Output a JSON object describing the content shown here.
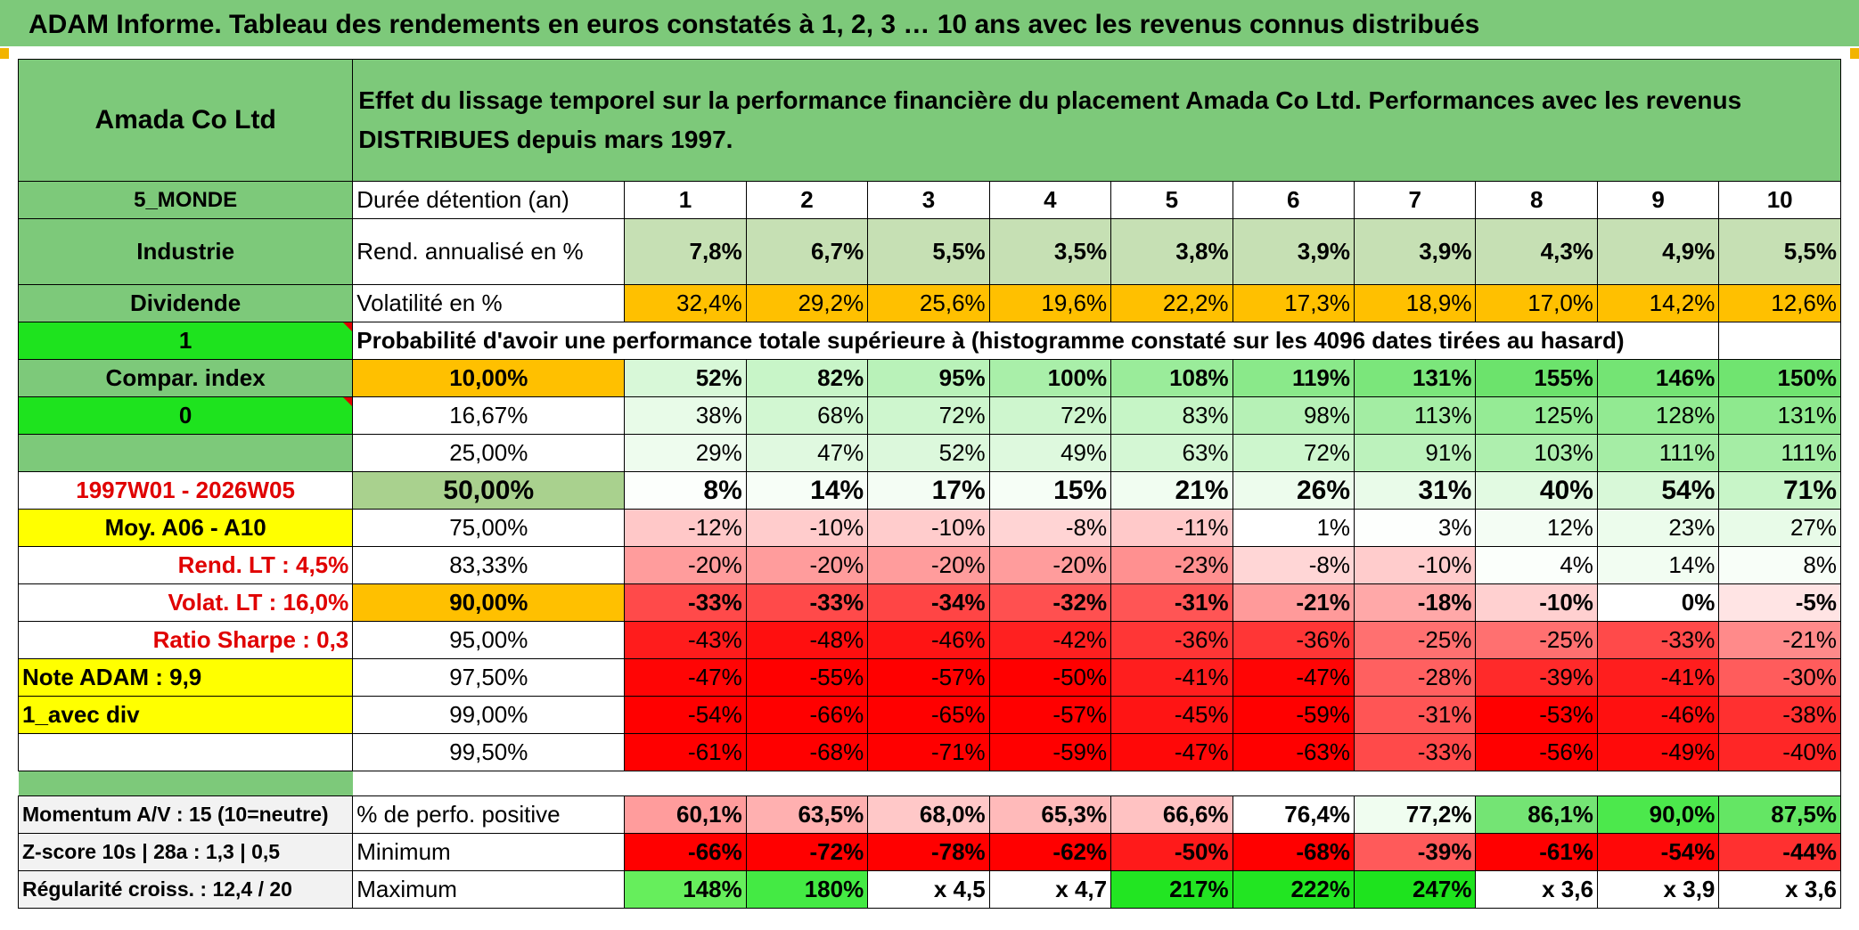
{
  "title": "ADAM Informe. Tableau des rendements en euros constatés à 1, 2, 3 … 10 ans avec les revenus connus distribués",
  "header": {
    "company": "Amada Co Ltd",
    "description": "Effet du lissage temporel sur la performance financière du placement Amada Co Ltd. Performances avec les revenus DISTRIBUES depuis mars 1997."
  },
  "left": {
    "region": "5_MONDE",
    "sector": "Industrie",
    "dividend": "Dividende",
    "flag1": "1",
    "compar": "Compar. index",
    "flag0": "0",
    "period": "1997W01 - 2026W05",
    "moy": "Moy. A06 - A10",
    "rend_lt": "Rend. LT :   4,5%",
    "volat_lt": "Volat. LT :   16,0%",
    "sharpe": "Ratio Sharpe :   0,3",
    "note": "Note ADAM : 9,9",
    "avec_div": "1_avec div",
    "momentum": "Momentum A/V : 15 (10=neutre)",
    "zscore": "Z-score 10s | 28a : 1,3 | 0,5",
    "regularite": "Régularité croiss. : 12,4 / 20"
  },
  "labels": {
    "duree": "Durée détention (an)",
    "rend": "Rend. annualisé en %",
    "volat": "Volatilité en %",
    "proba": "Probabilité d'avoir une performance totale supérieure à (histogramme constaté sur les 4096 dates tirées au hasard)",
    "pct_pos": "% de perfo. positive",
    "minimum": "Minimum",
    "maximum": "Maximum"
  },
  "years": [
    "1",
    "2",
    "3",
    "4",
    "5",
    "6",
    "7",
    "8",
    "9",
    "10"
  ],
  "rend": [
    "7,8%",
    "6,7%",
    "5,5%",
    "3,5%",
    "3,8%",
    "3,9%",
    "3,9%",
    "4,3%",
    "4,9%",
    "5,5%"
  ],
  "volat": [
    "32,4%",
    "29,2%",
    "25,6%",
    "19,6%",
    "22,2%",
    "17,3%",
    "18,9%",
    "17,0%",
    "14,2%",
    "12,6%"
  ],
  "volat_colors": [
    "#ffc000",
    "#ffc000",
    "#ffc000",
    "#ffc000",
    "#ffc000",
    "#ffc000",
    "#ffc000",
    "#ffc000",
    "#ffc000",
    "#ffc000"
  ],
  "prob_rows": [
    {
      "p": "10,00%",
      "p_bg": "#ffc000",
      "bold": true,
      "vals": [
        "52%",
        "82%",
        "95%",
        "100%",
        "108%",
        "119%",
        "131%",
        "155%",
        "146%",
        "150%"
      ],
      "colors": [
        "#d8f8d8",
        "#c8f5c8",
        "#b9f2b9",
        "#a9efa9",
        "#9aec9a",
        "#8ae98a",
        "#7be67b",
        "#6ce36c",
        "#74e474",
        "#70e470"
      ]
    },
    {
      "p": "16,67%",
      "p_bg": "#ffffff",
      "bold": false,
      "vals": [
        "38%",
        "68%",
        "72%",
        "72%",
        "83%",
        "98%",
        "113%",
        "125%",
        "128%",
        "131%"
      ],
      "colors": [
        "#e8fbe8",
        "#d2f7d2",
        "#cef6ce",
        "#cef6ce",
        "#c6f5c6",
        "#b6f1b6",
        "#a3eda3",
        "#95eb95",
        "#92ea92",
        "#8ee98e"
      ]
    },
    {
      "p": "25,00%",
      "p_bg": "#ffffff",
      "bold": false,
      "vals": [
        "29%",
        "47%",
        "52%",
        "49%",
        "63%",
        "72%",
        "91%",
        "103%",
        "111%",
        "111%"
      ],
      "colors": [
        "#eefcee",
        "#e0f9e0",
        "#dcf8dc",
        "#def9de",
        "#d4f7d4",
        "#cdf6cd",
        "#bcf2bc",
        "#aeefae",
        "#a5eda5",
        "#a5eda5"
      ]
    },
    {
      "p": "50,00%",
      "p_bg": "#a9d18e",
      "bold": true,
      "big": true,
      "vals": [
        "8%",
        "14%",
        "17%",
        "15%",
        "21%",
        "26%",
        "31%",
        "40%",
        "54%",
        "71%"
      ],
      "colors": [
        "#fcfffc",
        "#f7fef7",
        "#f4fdf4",
        "#f6fef6",
        "#f1fdf1",
        "#edfced",
        "#e9fbe9",
        "#e2fae2",
        "#d8f8d8",
        "#c8f5c8"
      ]
    },
    {
      "p": "75,00%",
      "p_bg": "#ffffff",
      "bold": false,
      "vals": [
        "-12%",
        "-10%",
        "-10%",
        "-8%",
        "-11%",
        "1%",
        "3%",
        "12%",
        "23%",
        "27%"
      ],
      "colors": [
        "#ffc8c8",
        "#ffcccc",
        "#ffcccc",
        "#ffd4d4",
        "#ffc9c9",
        "#ffffff",
        "#fdfffd",
        "#f4fdf4",
        "#ecfcec",
        "#e8fbe8"
      ]
    },
    {
      "p": "83,33%",
      "p_bg": "#ffffff",
      "bold": false,
      "vals": [
        "-20%",
        "-20%",
        "-20%",
        "-20%",
        "-23%",
        "-8%",
        "-10%",
        "4%",
        "14%",
        "8%"
      ],
      "colors": [
        "#ff9c9c",
        "#ff9c9c",
        "#ff9c9c",
        "#ff9c9c",
        "#ff9090",
        "#ffd6d6",
        "#ffcccc",
        "#fbfffb",
        "#f2fdf2",
        "#f8fef8"
      ]
    },
    {
      "p": "90,00%",
      "p_bg": "#ffc000",
      "bold": true,
      "vals": [
        "-33%",
        "-33%",
        "-34%",
        "-32%",
        "-31%",
        "-21%",
        "-18%",
        "-10%",
        "0%",
        "-5%"
      ],
      "colors": [
        "#ff4a4a",
        "#ff4a4a",
        "#ff4545",
        "#ff5050",
        "#ff5555",
        "#ff9a9a",
        "#ffa8a8",
        "#ffd0d0",
        "#ffffff",
        "#ffe4e4"
      ]
    },
    {
      "p": "95,00%",
      "p_bg": "#ffffff",
      "bold": false,
      "vals": [
        "-43%",
        "-48%",
        "-46%",
        "-42%",
        "-36%",
        "-36%",
        "-25%",
        "-25%",
        "-33%",
        "-21%"
      ],
      "colors": [
        "#ff1c1c",
        "#ff0f0f",
        "#ff1414",
        "#ff2020",
        "#ff3636",
        "#ff3636",
        "#ff7070",
        "#ff7070",
        "#ff4a4a",
        "#ff8a8a"
      ]
    },
    {
      "p": "97,50%",
      "p_bg": "#ffffff",
      "bold": false,
      "vals": [
        "-47%",
        "-55%",
        "-57%",
        "-50%",
        "-41%",
        "-47%",
        "-28%",
        "-39%",
        "-41%",
        "-30%"
      ],
      "colors": [
        "#ff0505",
        "#ff0000",
        "#ff0000",
        "#ff0000",
        "#ff1e1e",
        "#ff0505",
        "#ff6060",
        "#ff2a2a",
        "#ff1e1e",
        "#ff5c5c"
      ]
    },
    {
      "p": "99,00%",
      "p_bg": "#ffffff",
      "bold": false,
      "vals": [
        "-54%",
        "-66%",
        "-65%",
        "-57%",
        "-45%",
        "-59%",
        "-31%",
        "-53%",
        "-46%",
        "-38%"
      ],
      "colors": [
        "#ff0000",
        "#ff0000",
        "#ff0000",
        "#ff0000",
        "#ff1414",
        "#ff0000",
        "#ff5555",
        "#ff0000",
        "#ff1010",
        "#ff3030"
      ]
    },
    {
      "p": "99,50%",
      "p_bg": "#ffffff",
      "bold": false,
      "vals": [
        "-61%",
        "-68%",
        "-71%",
        "-59%",
        "-47%",
        "-63%",
        "-33%",
        "-56%",
        "-49%",
        "-40%"
      ],
      "colors": [
        "#ff0000",
        "#ff0000",
        "#ff0000",
        "#ff0000",
        "#ff0808",
        "#ff0000",
        "#ff4a4a",
        "#ff0000",
        "#ff0a0a",
        "#ff2626"
      ]
    }
  ],
  "pct_pos": [
    "60,1%",
    "63,5%",
    "68,0%",
    "65,3%",
    "66,6%",
    "76,4%",
    "77,2%",
    "86,1%",
    "90,0%",
    "87,5%"
  ],
  "pct_pos_colors": [
    "#ff9c9c",
    "#ffb0b0",
    "#ffc8c8",
    "#ffbaba",
    "#ffc2c2",
    "#ffffff",
    "#f0fdf0",
    "#74e474",
    "#4ce84c",
    "#64e664"
  ],
  "minimum": [
    "-66%",
    "-72%",
    "-78%",
    "-62%",
    "-50%",
    "-68%",
    "-39%",
    "-61%",
    "-54%",
    "-44%"
  ],
  "minimum_colors": [
    "#ff0000",
    "#ff0000",
    "#ff0000",
    "#ff0000",
    "#ff1a1a",
    "#ff0000",
    "#ff5a5a",
    "#ff0000",
    "#ff0808",
    "#ff3030"
  ],
  "maximum": [
    "148%",
    "180%",
    "x 4,5",
    "x 4,7",
    "217%",
    "222%",
    "247%",
    "x 3,6",
    "x 3,9",
    "x 3,6"
  ],
  "maximum_colors": [
    "#66ee5c",
    "#44ea44",
    "#ffffff",
    "#ffffff",
    "#22e522",
    "#22e522",
    "#1ee31e",
    "#ffffff",
    "#ffffff",
    "#ffffff"
  ]
}
